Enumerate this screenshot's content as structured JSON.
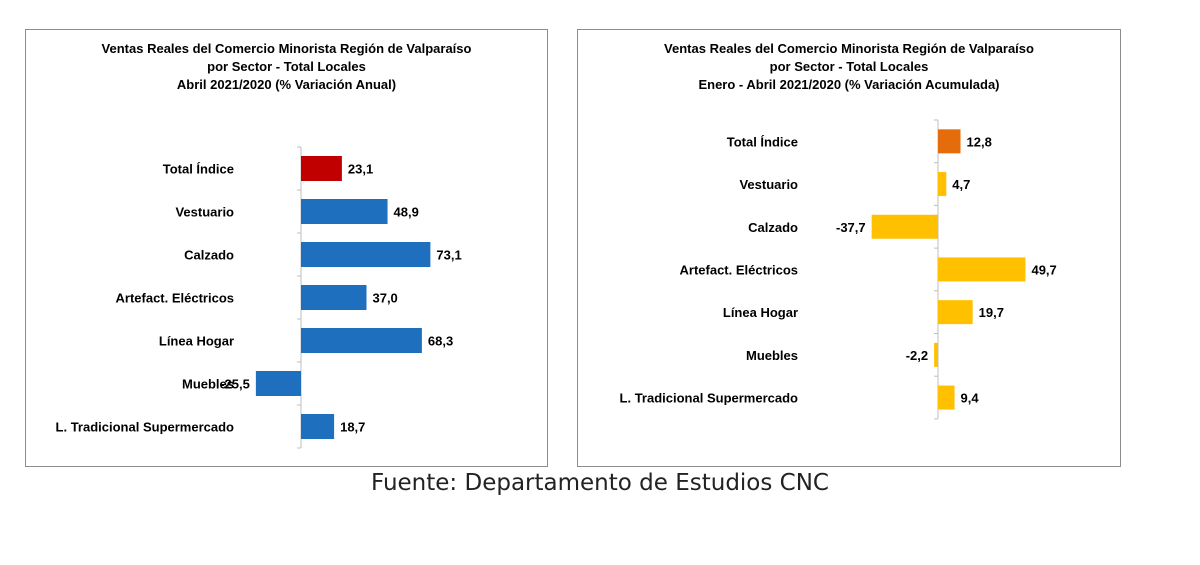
{
  "chart_data": [
    {
      "type": "bar",
      "orientation": "horizontal",
      "title": [
        "Ventas Reales del Comercio Minorista Región de Valparaíso",
        "por Sector - Total Locales",
        "Abril 2021/2020 (% Variación Anual)"
      ],
      "categories": [
        "Total Índice",
        "Vestuario",
        "Calzado",
        "Artefact. Eléctricos",
        "Línea Hogar",
        "Muebles",
        "L. Tradicional Supermercado"
      ],
      "values": [
        23.1,
        48.9,
        73.1,
        37.0,
        68.3,
        -25.5,
        18.7
      ],
      "value_labels": [
        "23,1",
        "48,9",
        "73,1",
        "37,0",
        "68,3",
        "-25,5",
        "18,7"
      ],
      "bar_colors": [
        "#c00000",
        "#1f6fbf",
        "#1f6fbf",
        "#1f6fbf",
        "#1f6fbf",
        "#1f6fbf",
        "#1f6fbf"
      ],
      "grid": false
    },
    {
      "type": "bar",
      "orientation": "horizontal",
      "title": [
        "Ventas Reales del Comercio Minorista Región de Valparaíso",
        "por Sector  - Total Locales",
        "Enero - Abril  2021/2020 (% Variación Acumulada)"
      ],
      "categories": [
        "Total Índice",
        "Vestuario",
        "Calzado",
        "Artefact. Eléctricos",
        "Línea Hogar",
        "Muebles",
        "L. Tradicional Supermercado"
      ],
      "values": [
        12.8,
        4.7,
        -37.7,
        49.7,
        19.7,
        -2.2,
        9.4
      ],
      "value_labels": [
        "12,8",
        "4,7",
        "-37,7",
        "49,7",
        "19,7",
        "-2,2",
        "9,4"
      ],
      "bar_colors": [
        "#e46c0a",
        "#ffc000",
        "#ffc000",
        "#ffc000",
        "#ffc000",
        "#ffc000",
        "#ffc000"
      ],
      "grid": false
    }
  ],
  "source_note": "Fuente: Departamento de Estudios CNC"
}
